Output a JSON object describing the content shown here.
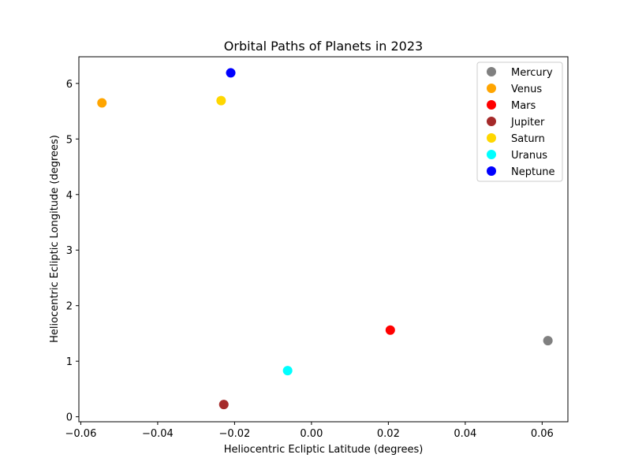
{
  "chart_data": {
    "type": "scatter",
    "title": "Orbital Paths of Planets in 2023",
    "xlabel": "Heliocentric Ecliptic Latitude (degrees)",
    "ylabel": "Heliocentric Ecliptic Longitude (degrees)",
    "xlim": [
      -0.0605,
      0.0667
    ],
    "ylim": [
      -0.09,
      6.48
    ],
    "x_ticks": [
      -0.06,
      -0.04,
      -0.02,
      0.0,
      0.02,
      0.04,
      0.06
    ],
    "x_tick_labels": [
      "−0.06",
      "−0.04",
      "−0.02",
      "0.00",
      "0.02",
      "0.04",
      "0.06"
    ],
    "y_ticks": [
      0,
      1,
      2,
      3,
      4,
      5,
      6
    ],
    "y_tick_labels": [
      "0",
      "1",
      "2",
      "3",
      "4",
      "5",
      "6"
    ],
    "grid": false,
    "legend_position": "top-right",
    "series": [
      {
        "name": "Mercury",
        "color": "#808080",
        "points": [
          {
            "x": 0.0615,
            "y": 1.37
          }
        ]
      },
      {
        "name": "Venus",
        "color": "#ffa500",
        "points": [
          {
            "x": -0.0545,
            "y": 5.65
          }
        ]
      },
      {
        "name": "Mars",
        "color": "#ff0000",
        "points": [
          {
            "x": 0.0205,
            "y": 1.56
          }
        ]
      },
      {
        "name": "Jupiter",
        "color": "#a52a2a",
        "points": [
          {
            "x": -0.0228,
            "y": 0.22
          }
        ]
      },
      {
        "name": "Saturn",
        "color": "#ffd700",
        "points": [
          {
            "x": -0.0235,
            "y": 5.69
          }
        ]
      },
      {
        "name": "Uranus",
        "color": "#00ffff",
        "points": [
          {
            "x": -0.0062,
            "y": 0.83
          }
        ]
      },
      {
        "name": "Neptune",
        "color": "#0000ff",
        "points": [
          {
            "x": -0.021,
            "y": 6.19
          }
        ]
      }
    ]
  }
}
